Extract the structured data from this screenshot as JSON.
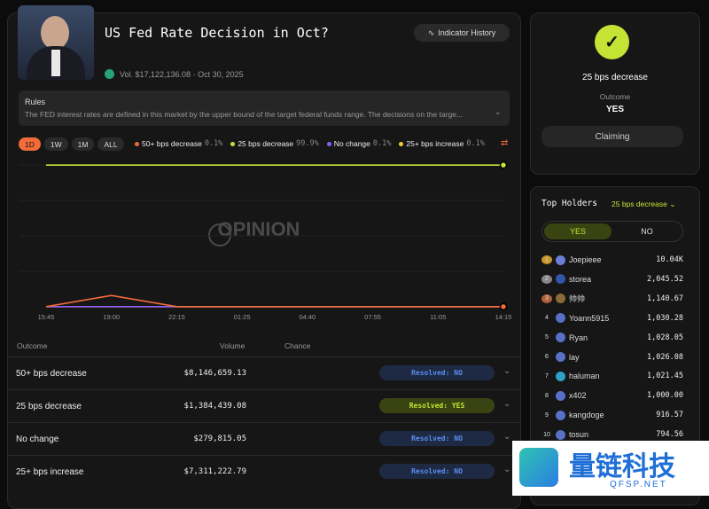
{
  "header": {
    "title": "US Fed Rate Decision in Oct?",
    "volume": "Vol. $17,122,136.08 · Oct 30, 2025",
    "indicator_button": "Indicator History"
  },
  "rules": {
    "title": "Rules",
    "text": "The FED interest rates are defined in this market by the upper bound of the target federal funds range. The decisions on the targe..."
  },
  "ranges": [
    "1D",
    "1W",
    "1M",
    "ALL"
  ],
  "watermark": "OPINION",
  "chart_data": {
    "type": "line",
    "categories": [
      "15:45",
      "19:00",
      "22:15",
      "01:25",
      "04:40",
      "07:55",
      "11:05",
      "14:15"
    ],
    "ylim": [
      0,
      100
    ],
    "series": [
      {
        "name": "50+ bps decrease",
        "legend_value": "0.1%",
        "color": "#f26b3a",
        "values": [
          0.1,
          8,
          0.1,
          0.1,
          0.1,
          0.1,
          0.1,
          0.1
        ]
      },
      {
        "name": "25 bps decrease",
        "legend_value": "99.9%",
        "color": "#c5e334",
        "values": [
          99.9,
          99.9,
          99.9,
          99.9,
          99.9,
          99.9,
          99.9,
          99.9
        ]
      },
      {
        "name": "No change",
        "legend_value": "0.1%",
        "color": "#8b5cf6",
        "values": [
          0.1,
          0.1,
          0.1,
          0.1,
          0.1,
          0.1,
          0.1,
          0.1
        ]
      },
      {
        "name": "25+ bps increase",
        "legend_value": "0.1%",
        "color": "#f5c542",
        "values": [
          0.1,
          0.1,
          0.1,
          0.1,
          0.1,
          0.1,
          0.1,
          0.1
        ]
      }
    ]
  },
  "table": {
    "headers": [
      "Outcome",
      "Volume",
      "Chance"
    ],
    "rows": [
      [
        "50+ bps decrease",
        "$8,146,659.13",
        "Resolved: NO"
      ],
      [
        "25 bps decrease",
        "$1,384,439.08",
        "Resolved: YES"
      ],
      [
        "No change",
        "$279,815.05",
        "Resolved: NO"
      ],
      [
        "25+ bps increase",
        "$7,311,222.79",
        "Resolved: NO"
      ]
    ]
  },
  "resolution": {
    "outcome": "25 bps decrease",
    "label": "Outcome",
    "result": "YES",
    "button": "Claiming"
  },
  "holders": {
    "title": "Top Holders",
    "filter": "25 bps decrease",
    "tabs": [
      "YES",
      "NO"
    ],
    "rows": [
      [
        "1",
        "Joepieee",
        "10.04K"
      ],
      [
        "2",
        "storea",
        "2,045.52"
      ],
      [
        "3",
        "帅帅",
        "1,140.67"
      ],
      [
        "4",
        "Yoann5915",
        "1,030.28"
      ],
      [
        "5",
        "Ryan",
        "1,028.05"
      ],
      [
        "6",
        "lay",
        "1,026.08"
      ],
      [
        "7",
        "haluman",
        "1,021.45"
      ],
      [
        "8",
        "x402",
        "1,000.00"
      ],
      [
        "9",
        "kangdoge",
        "916.57"
      ],
      [
        "10",
        "tosun",
        "794.56"
      ]
    ]
  },
  "footer_watermark": {
    "name": "量链科技",
    "site": "QFSP.NET"
  }
}
